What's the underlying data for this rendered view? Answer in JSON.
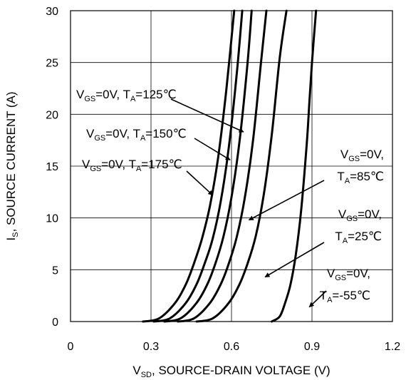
{
  "chart_data": {
    "type": "line",
    "title": "",
    "xlabel": {
      "main": "V",
      "sub": "SD",
      "rest": ", SOURCE-DRAIN VOLTAGE (V)"
    },
    "ylabel": {
      "main": "I",
      "sub": "S",
      "rest": ", SOURCE CURRENT (A)"
    },
    "xlim": [
      0,
      1.2
    ],
    "ylim": [
      0,
      30
    ],
    "xticks": [
      0,
      0.3,
      0.6,
      0.9,
      1.2
    ],
    "xtick_labels": [
      "0",
      "0.3",
      "0.6",
      "0.9",
      "1.2"
    ],
    "yticks": [
      0,
      5,
      10,
      15,
      20,
      25,
      30
    ],
    "ytick_labels": [
      "0",
      "5",
      "10",
      "15",
      "20",
      "25",
      "30"
    ],
    "grid": true,
    "line_color": "#000000",
    "series": [
      {
        "key": "s175",
        "vgs": "=0V, ",
        "ta": "=175℃",
        "x": [
          0.27,
          0.33,
          0.39,
          0.43,
          0.46,
          0.49,
          0.52,
          0.55,
          0.58,
          0.61
        ],
        "y": [
          0,
          0.3,
          1.8,
          3.6,
          5.6,
          8.0,
          11.2,
          15.8,
          22.2,
          30
        ]
      },
      {
        "key": "s150",
        "vgs": "=0V, ",
        "ta": "=150℃",
        "x": [
          0.31,
          0.37,
          0.43,
          0.47,
          0.5,
          0.53,
          0.56,
          0.59,
          0.62,
          0.64
        ],
        "y": [
          0,
          0.3,
          1.8,
          3.6,
          5.6,
          8.0,
          11.6,
          16.8,
          24.0,
          30
        ]
      },
      {
        "key": "s125",
        "vgs": "=0V, ",
        "ta": "=125℃",
        "x": [
          0.35,
          0.41,
          0.47,
          0.51,
          0.54,
          0.57,
          0.6,
          0.63,
          0.66,
          0.675
        ],
        "y": [
          0,
          0.3,
          1.8,
          3.6,
          5.6,
          8.2,
          12.0,
          17.4,
          25.0,
          30
        ]
      },
      {
        "key": "s85",
        "vgs": "=0V,",
        "ta": "=85℃",
        "x": [
          0.4,
          0.46,
          0.52,
          0.56,
          0.59,
          0.62,
          0.65,
          0.68,
          0.71,
          0.73
        ],
        "y": [
          0,
          0.3,
          1.8,
          3.6,
          5.6,
          8.2,
          12.0,
          17.4,
          25.0,
          30
        ]
      },
      {
        "key": "s25",
        "vgs": "=0V,",
        "ta": "=25℃",
        "x": [
          0.47,
          0.53,
          0.59,
          0.63,
          0.66,
          0.69,
          0.72,
          0.75,
          0.78,
          0.805
        ],
        "y": [
          0,
          0.3,
          1.8,
          3.6,
          5.6,
          8.2,
          12.2,
          18.0,
          25.5,
          30
        ]
      },
      {
        "key": "s_55",
        "vgs": "=0V,",
        "ta": "=-55℃",
        "x": [
          0.75,
          0.78,
          0.8,
          0.82,
          0.84,
          0.86,
          0.88,
          0.89,
          0.9,
          0.915
        ],
        "y": [
          0,
          0.5,
          1.8,
          3.6,
          6.5,
          10.8,
          17.0,
          21.0,
          25.0,
          30
        ]
      }
    ],
    "annotations": [
      {
        "series": "s125",
        "lines": [
          [
            "V",
            "GS",
            "=0V, ",
            "T",
            "A",
            "=125℃"
          ]
        ],
        "point": [
          0.645,
          18.3
        ]
      },
      {
        "series": "s150",
        "lines": [
          [
            "V",
            "GS",
            "=0V, ",
            "T",
            "A",
            "=150℃"
          ]
        ],
        "point": [
          0.595,
          15.6
        ]
      },
      {
        "series": "s175",
        "lines": [
          [
            "V",
            "GS",
            "=0V, ",
            "T",
            "A",
            "=175℃"
          ]
        ],
        "point": [
          0.53,
          12.2
        ]
      },
      {
        "series": "s85",
        "lines": [
          [
            "V",
            "GS",
            "=0V,",
            "",
            "",
            ""
          ],
          [
            "",
            "",
            "",
            "T",
            "A",
            "=85℃"
          ]
        ],
        "point": [
          0.665,
          9.8
        ]
      },
      {
        "series": "s25",
        "lines": [
          [
            "V",
            "GS",
            "=0V,",
            "",
            "",
            ""
          ],
          [
            "",
            "",
            "",
            "T",
            "A",
            "=25℃"
          ]
        ],
        "point": [
          0.725,
          4.3
        ]
      },
      {
        "series": "s_55",
        "lines": [
          [
            "V",
            "GS",
            "=0V,",
            "",
            "",
            ""
          ],
          [
            "",
            "",
            "",
            "T",
            "A",
            "=-55℃"
          ]
        ],
        "point": [
          0.89,
          1.4
        ]
      }
    ]
  }
}
